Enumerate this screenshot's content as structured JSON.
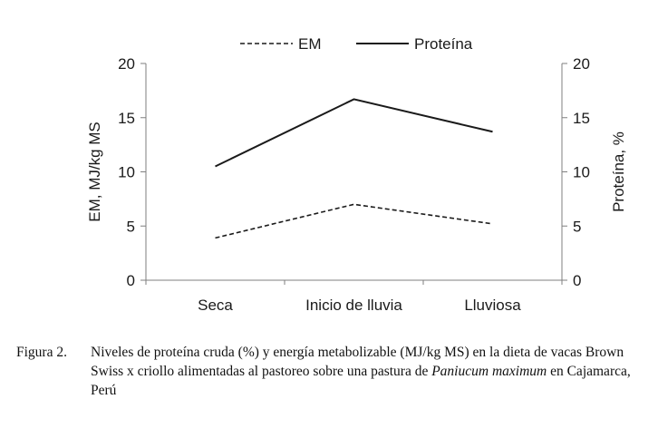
{
  "chart_data": {
    "type": "line",
    "categories": [
      "Seca",
      "Inicio de lluvia",
      "Lluviosa"
    ],
    "series": [
      {
        "name": "EM",
        "axis": "left",
        "style": "dashed",
        "values": [
          3.9,
          7.0,
          5.2
        ]
      },
      {
        "name": "Proteína",
        "axis": "right",
        "style": "solid",
        "values": [
          10.5,
          16.7,
          13.7
        ]
      }
    ],
    "ylabel": "EM, MJ/kg MS",
    "y2label": "Proteína, %",
    "ylim": [
      0,
      20
    ],
    "y2lim": [
      0,
      20
    ],
    "yticks": [
      "0",
      "5",
      "10",
      "15",
      "20"
    ],
    "y2ticks": [
      "0",
      "5",
      "10",
      "15",
      "20"
    ],
    "legend_placement": "top-center",
    "grid": false
  },
  "caption": {
    "number": "Figura 2.",
    "text_before": "Niveles de proteína cruda (%) y energía metabolizable (MJ/kg MS) en la dieta de vacas Brown Swiss x criollo alimentadas al pastoreo sobre una pastura de ",
    "species_italic": "Paniucum maximum",
    "text_after": " en Cajamarca, Perú"
  },
  "colors": {
    "line": "#1a1a1a",
    "axis": "#7f7f7f"
  }
}
